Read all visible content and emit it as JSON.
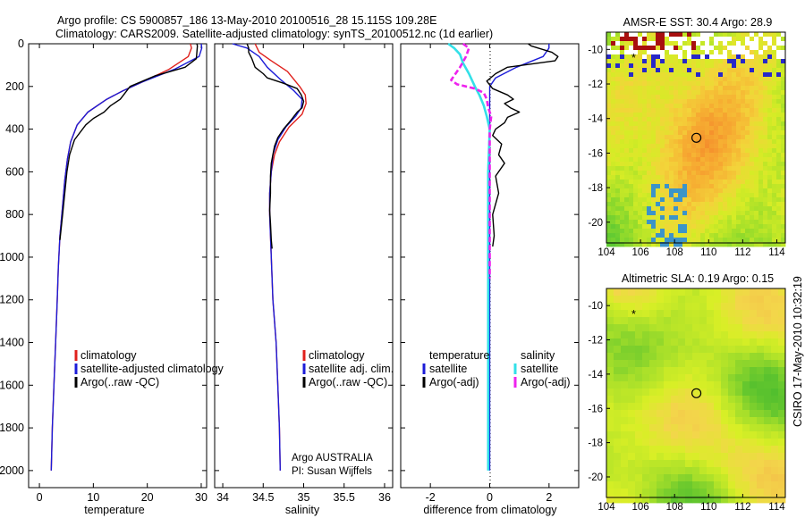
{
  "header": {
    "line1": "Argo profile: CS 5900857_186 13-May-2010 20100516_28 15.115S 109.28E",
    "line2": "Climatology: CARS2009. Satellite-adjusted climatology: synTS_20100512.nc (1d earlier)"
  },
  "colors": {
    "climatology": "#e0201c",
    "satellite_adjusted": "#1c1cd8",
    "argo": "#000000",
    "satellite_diff": "#33e0e8",
    "argo_adj_diff": "#ee22ee",
    "sst_ramp": [
      "#5ac833",
      "#9add2a",
      "#d6ec26",
      "#f3d43a",
      "#f6b233",
      "#f58f2c"
    ],
    "sla_ramp": [
      "#39b42f",
      "#63c62e",
      "#a7df2a",
      "#d8ef26",
      "#f3d64a",
      "#f3bb48"
    ],
    "land": "#a80f0f",
    "cloud": "#2828c8"
  },
  "depth_axis": {
    "ticks": [
      0,
      200,
      400,
      600,
      800,
      1000,
      1200,
      1400,
      1600,
      1800,
      2000
    ],
    "range": [
      0,
      2080
    ]
  },
  "chart_data": [
    {
      "id": "temperature",
      "type": "line",
      "xlabel": "temperature",
      "xlim": [
        -2,
        31
      ],
      "xticks": [
        0,
        10,
        20,
        30
      ],
      "ylim": [
        0,
        2080
      ],
      "series": [
        {
          "name": "climatology",
          "color": "#e0201c",
          "points": [
            [
              28.0,
              0
            ],
            [
              28.2,
              20
            ],
            [
              27.6,
              60
            ],
            [
              24.0,
              120
            ],
            [
              19.0,
              180
            ],
            [
              15.5,
              220
            ],
            [
              12.5,
              260
            ],
            [
              9.0,
              320
            ],
            [
              7.0,
              380
            ],
            [
              5.8,
              460
            ],
            [
              5.2,
              540
            ],
            [
              4.7,
              640
            ],
            [
              4.3,
              760
            ],
            [
              3.8,
              900
            ],
            [
              3.5,
              1050
            ],
            [
              3.3,
              1200
            ],
            [
              3.0,
              1400
            ],
            [
              2.7,
              1600
            ],
            [
              2.4,
              1800
            ],
            [
              2.2,
              2000
            ]
          ]
        },
        {
          "name": "satellite-adjusted climatology",
          "color": "#1c1cd8",
          "points": [
            [
              30.0,
              0
            ],
            [
              30.1,
              20
            ],
            [
              29.6,
              60
            ],
            [
              25.0,
              120
            ],
            [
              19.0,
              180
            ],
            [
              15.5,
              220
            ],
            [
              12.5,
              260
            ],
            [
              9.0,
              320
            ],
            [
              7.0,
              380
            ],
            [
              5.8,
              460
            ],
            [
              5.2,
              540
            ],
            [
              4.7,
              640
            ],
            [
              4.3,
              760
            ],
            [
              3.8,
              900
            ],
            [
              3.5,
              1050
            ],
            [
              3.3,
              1200
            ],
            [
              3.0,
              1400
            ],
            [
              2.7,
              1600
            ],
            [
              2.4,
              1800
            ],
            [
              2.2,
              2000
            ]
          ]
        },
        {
          "name": "Argo(..raw -QC)",
          "color": "#000000",
          "points": [
            [
              29.2,
              0
            ],
            [
              29.3,
              10
            ],
            [
              29.2,
              40
            ],
            [
              29.1,
              70
            ],
            [
              27.0,
              110
            ],
            [
              21.5,
              150
            ],
            [
              16.8,
              200
            ],
            [
              15.0,
              260
            ],
            [
              13.2,
              290
            ],
            [
              12.0,
              320
            ],
            [
              10.0,
              350
            ],
            [
              8.6,
              380
            ],
            [
              6.5,
              450
            ],
            [
              5.6,
              520
            ],
            [
              5.1,
              600
            ],
            [
              4.7,
              700
            ],
            [
              4.3,
              800
            ],
            [
              3.8,
              920
            ]
          ]
        }
      ],
      "legend": [
        "climatology",
        "satellite-adjusted climatology",
        "Argo(..raw -QC)"
      ]
    },
    {
      "id": "salinity",
      "type": "line",
      "xlabel": "salinity",
      "xlim": [
        33.9,
        36.1
      ],
      "xticks": [
        34,
        34.5,
        35,
        35.5,
        36
      ],
      "xticklabels": [
        "34",
        "34.5",
        "35",
        "35.5",
        "36"
      ],
      "ylim": [
        0,
        2080
      ],
      "series": [
        {
          "name": "climatology",
          "color": "#e0201c",
          "points": [
            [
              34.4,
              0
            ],
            [
              34.45,
              40
            ],
            [
              34.6,
              80
            ],
            [
              34.8,
              130
            ],
            [
              34.95,
              200
            ],
            [
              35.02,
              240
            ],
            [
              35.03,
              280
            ],
            [
              34.98,
              330
            ],
            [
              34.82,
              390
            ],
            [
              34.7,
              460
            ],
            [
              34.64,
              520
            ],
            [
              34.6,
              600
            ],
            [
              34.58,
              700
            ],
            [
              34.58,
              800
            ],
            [
              34.59,
              900
            ],
            [
              34.6,
              1000
            ],
            [
              34.62,
              1200
            ],
            [
              34.66,
              1400
            ],
            [
              34.68,
              1600
            ],
            [
              34.7,
              1800
            ],
            [
              34.71,
              2000
            ]
          ]
        },
        {
          "name": "satellite adj. clim.",
          "color": "#1c1cd8",
          "points": [
            [
              34.12,
              0
            ],
            [
              34.3,
              20
            ],
            [
              34.45,
              60
            ],
            [
              34.55,
              110
            ],
            [
              34.72,
              170
            ],
            [
              34.88,
              220
            ],
            [
              34.98,
              260
            ],
            [
              34.97,
              300
            ],
            [
              34.9,
              340
            ],
            [
              34.78,
              390
            ],
            [
              34.68,
              450
            ],
            [
              34.62,
              520
            ],
            [
              34.6,
              600
            ],
            [
              34.58,
              700
            ],
            [
              34.58,
              800
            ],
            [
              34.59,
              900
            ],
            [
              34.6,
              1000
            ],
            [
              34.62,
              1200
            ],
            [
              34.66,
              1400
            ],
            [
              34.68,
              1600
            ],
            [
              34.7,
              1800
            ],
            [
              34.71,
              2000
            ]
          ]
        },
        {
          "name": "Argo(..raw -QC)",
          "color": "#000000",
          "points": [
            [
              34.3,
              0
            ],
            [
              34.32,
              20
            ],
            [
              34.32,
              40
            ],
            [
              34.36,
              70
            ],
            [
              34.4,
              110
            ],
            [
              34.5,
              140
            ],
            [
              34.55,
              160
            ],
            [
              34.75,
              185
            ],
            [
              34.92,
              210
            ],
            [
              34.97,
              240
            ],
            [
              35.0,
              270
            ],
            [
              34.98,
              300
            ],
            [
              34.92,
              320
            ],
            [
              34.84,
              360
            ],
            [
              34.75,
              400
            ],
            [
              34.68,
              440
            ],
            [
              34.64,
              480
            ],
            [
              34.62,
              520
            ],
            [
              34.6,
              560
            ],
            [
              34.59,
              620
            ],
            [
              34.59,
              700
            ],
            [
              34.58,
              780
            ],
            [
              34.59,
              840
            ],
            [
              34.6,
              920
            ],
            [
              34.61,
              960
            ]
          ]
        }
      ],
      "legend": [
        "climatology",
        "satellite adj. clim.",
        "Argo(..raw -QC)"
      ],
      "annotation": [
        "Argo AUSTRALIA",
        "PI: Susan Wijffels"
      ]
    },
    {
      "id": "difference",
      "type": "line",
      "xlabel": "difference from climatology",
      "xlim": [
        -3,
        3
      ],
      "xticks": [
        -2,
        0,
        2
      ],
      "ylim": [
        0,
        2080
      ],
      "series": [
        {
          "name": "temperature satellite",
          "color": "#1c1cd8",
          "points": [
            [
              2.0,
              0
            ],
            [
              2.0,
              20
            ],
            [
              1.8,
              60
            ],
            [
              0.9,
              110
            ],
            [
              0.2,
              160
            ],
            [
              0.0,
              200
            ],
            [
              0.0,
              2000
            ]
          ]
        },
        {
          "name": "temperature Argo(-adj)",
          "color": "#000000",
          "points": [
            [
              1.3,
              0
            ],
            [
              1.4,
              10
            ],
            [
              2.1,
              40
            ],
            [
              2.3,
              60
            ],
            [
              2.2,
              80
            ],
            [
              0.6,
              110
            ],
            [
              0.2,
              140
            ],
            [
              -0.1,
              175
            ],
            [
              0.1,
              210
            ],
            [
              0.6,
              240
            ],
            [
              0.8,
              260
            ],
            [
              0.5,
              280
            ],
            [
              0.7,
              300
            ],
            [
              1.0,
              320
            ],
            [
              0.6,
              345
            ],
            [
              0.5,
              370
            ],
            [
              0.2,
              400
            ],
            [
              0.1,
              430
            ],
            [
              0.4,
              470
            ],
            [
              0.3,
              520
            ],
            [
              0.5,
              560
            ],
            [
              0.2,
              620
            ],
            [
              0.3,
              700
            ],
            [
              0.1,
              800
            ],
            [
              0.15,
              900
            ],
            [
              0.1,
              950
            ]
          ]
        },
        {
          "name": "salinity satellite",
          "color": "#33e0e8",
          "points": [
            [
              -1.4,
              0
            ],
            [
              -1.2,
              20
            ],
            [
              -1.0,
              50
            ],
            [
              -0.9,
              90
            ],
            [
              -0.7,
              140
            ],
            [
              -0.5,
              200
            ],
            [
              -0.35,
              240
            ],
            [
              -0.2,
              290
            ],
            [
              -0.1,
              340
            ],
            [
              0.0,
              400
            ],
            [
              -0.05,
              600
            ],
            [
              -0.05,
              800
            ],
            [
              -0.05,
              1000
            ],
            [
              -0.05,
              1500
            ],
            [
              -0.05,
              2000
            ]
          ]
        },
        {
          "name": "salinity Argo(-adj)",
          "color": "#ee22ee",
          "points": [
            [
              -0.9,
              0
            ],
            [
              -0.7,
              20
            ],
            [
              -0.8,
              60
            ],
            [
              -1.0,
              110
            ],
            [
              -1.2,
              150
            ],
            [
              -1.3,
              170
            ],
            [
              -1.1,
              190
            ],
            [
              -0.5,
              210
            ],
            [
              -0.2,
              230
            ],
            [
              -0.1,
              260
            ],
            [
              -0.05,
              300
            ],
            [
              0.05,
              340
            ],
            [
              0.0,
              400
            ],
            [
              0.0,
              500
            ],
            [
              0.0,
              700
            ],
            [
              0.0,
              800
            ],
            [
              0.0,
              1000
            ],
            [
              0.0,
              1100
            ]
          ]
        }
      ],
      "legend_titles": [
        "temperature",
        "salinity"
      ],
      "legend": [
        "satellite",
        "Argo(-adj)",
        "satellite",
        "Argo(-adj)"
      ]
    },
    {
      "id": "sst_map",
      "type": "heatmap",
      "title": "AMSR-E SST: 30.4  Argo: 28.9",
      "xlim": [
        104,
        114.5
      ],
      "ylim": [
        -21.2,
        -9.0
      ],
      "xticks": [
        104,
        106,
        108,
        110,
        112,
        114
      ],
      "yticks": [
        -10,
        -12,
        -14,
        -16,
        -18,
        -20
      ],
      "float_position": [
        109.28,
        -15.115
      ],
      "star_position": [
        105.6,
        -10.5
      ]
    },
    {
      "id": "sla_map",
      "type": "heatmap",
      "title": "Altimetric SLA: 0.19  Argo: 0.15",
      "xlim": [
        104,
        114.5
      ],
      "ylim": [
        -21.2,
        -9.0
      ],
      "xticks": [
        104,
        106,
        108,
        110,
        112,
        114
      ],
      "yticks": [
        -10,
        -12,
        -14,
        -16,
        -18,
        -20
      ],
      "float_position": [
        109.28,
        -15.115
      ],
      "star_position": [
        105.6,
        -10.5
      ]
    }
  ],
  "credit": "CSIRO 17-May-2010 10:32:19"
}
